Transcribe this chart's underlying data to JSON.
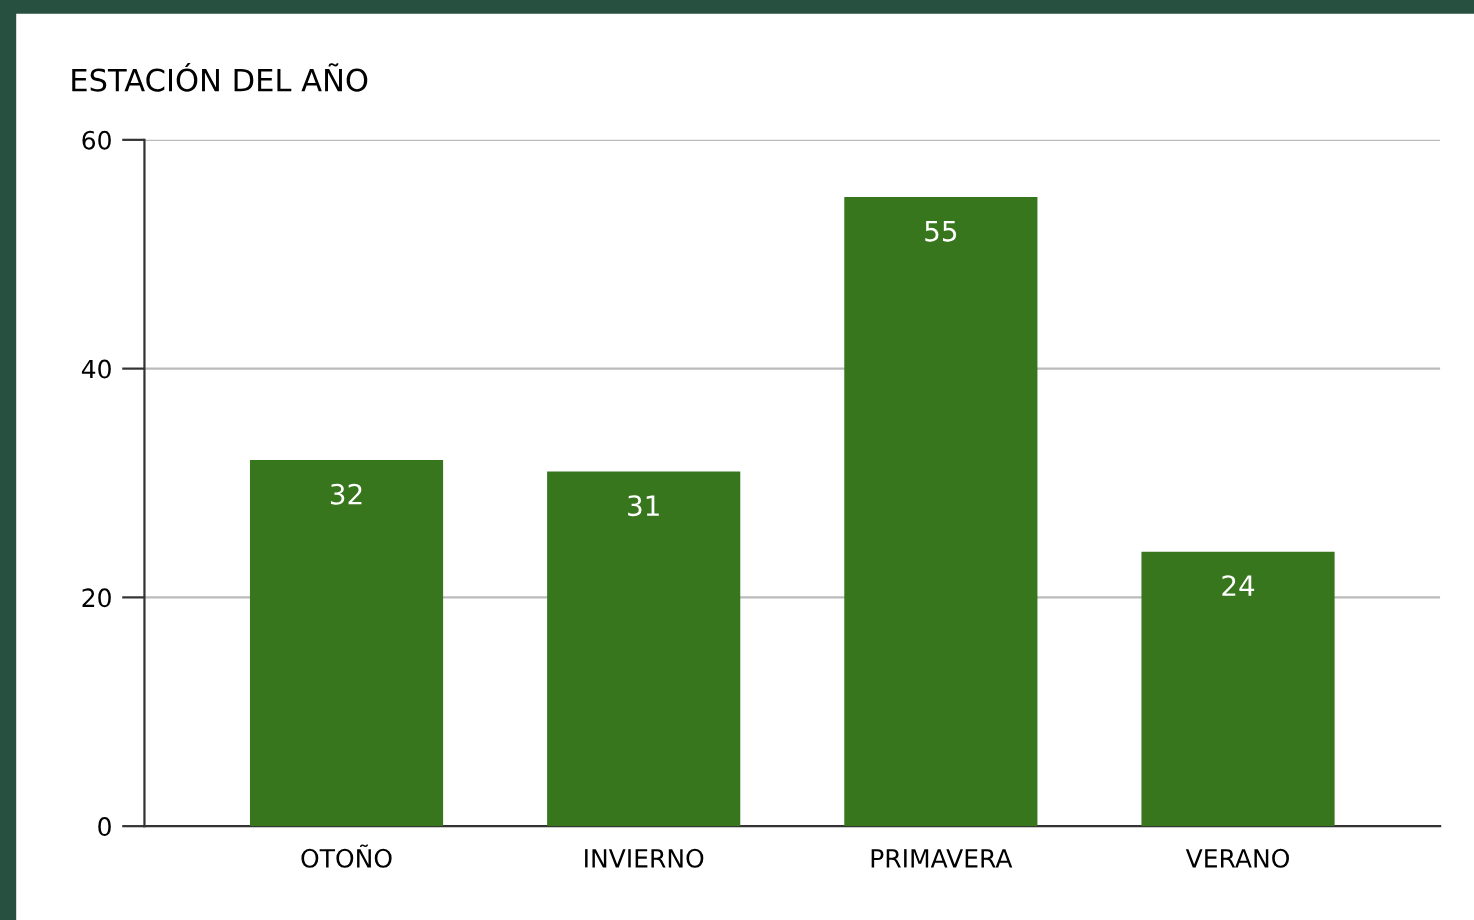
{
  "chart_data": {
    "type": "bar",
    "title": "ESTACIÓN DEL AÑO",
    "categories": [
      "OTOÑO",
      "INVIERNO",
      "PRIMAVERA",
      "VERANO"
    ],
    "values": [
      32,
      31,
      55,
      24
    ],
    "color": "#38761d",
    "ylim": [
      0,
      60
    ],
    "yticks": [
      0,
      20,
      40,
      60
    ],
    "grid": "y",
    "data_labels": true
  }
}
